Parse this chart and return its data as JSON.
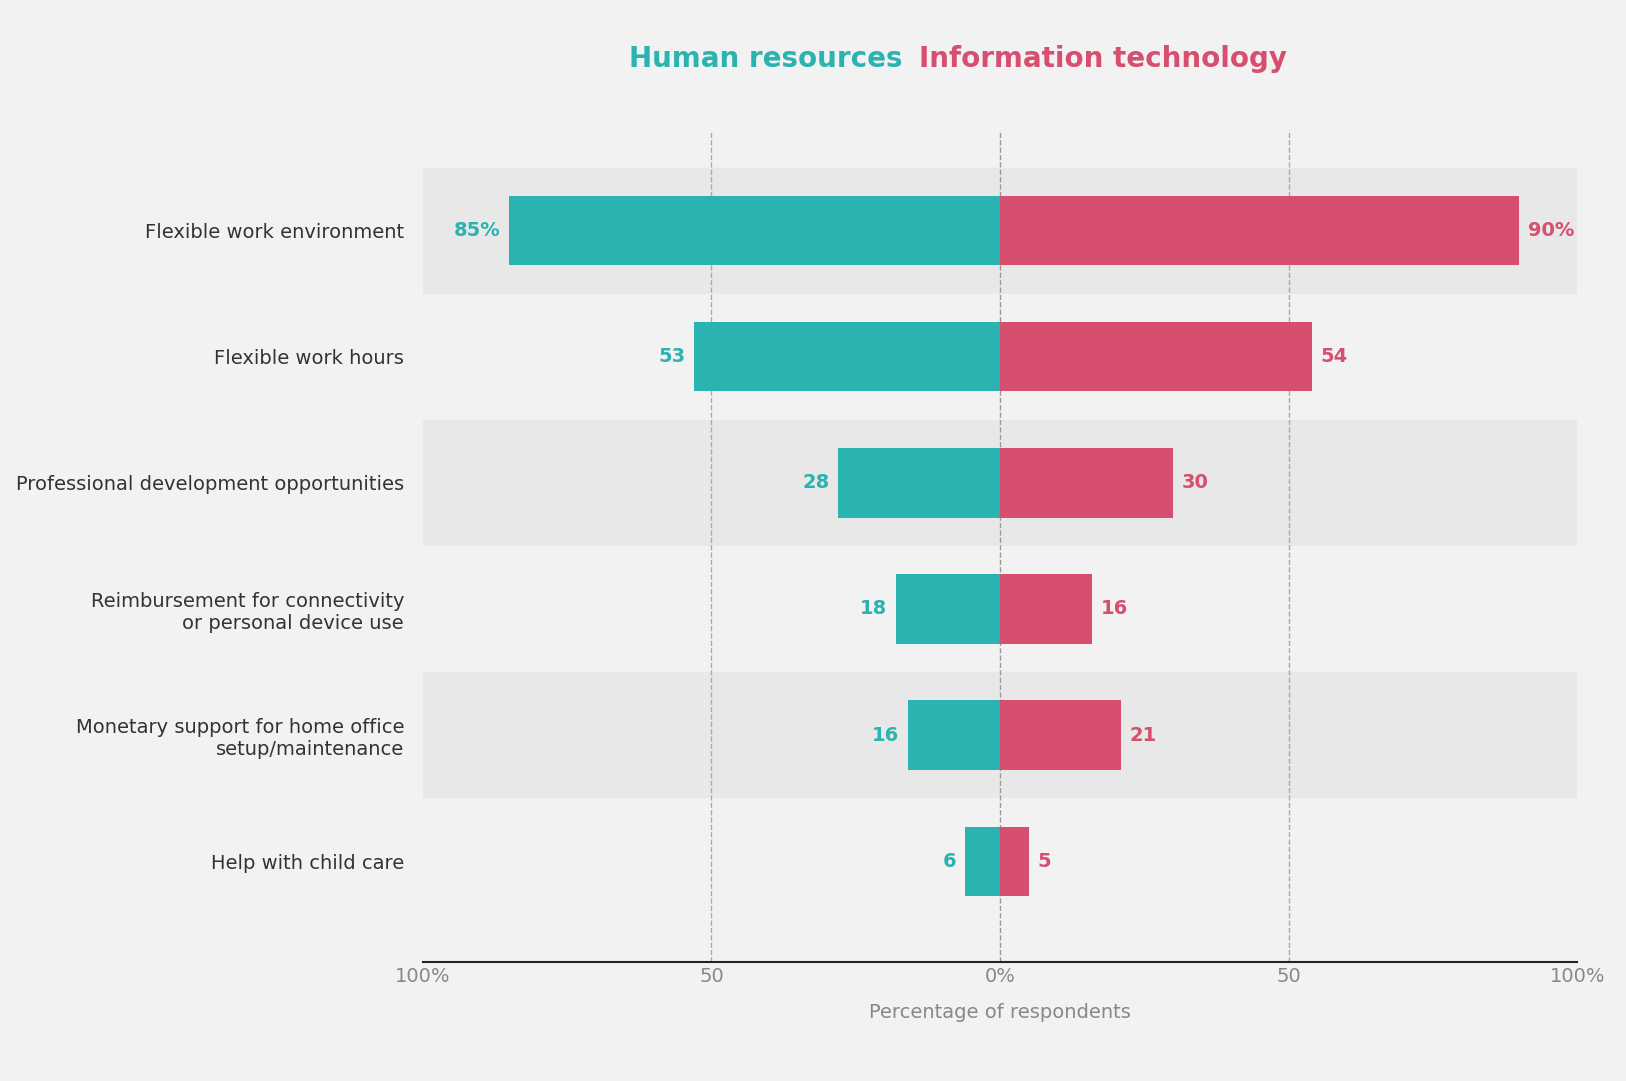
{
  "categories": [
    "Flexible work environment",
    "Flexible work hours",
    "Professional development opportunities",
    "Reimbursement for connectivity\nor personal device use",
    "Monetary support for home office\nsetup/maintenance",
    "Help with child care"
  ],
  "hr_values": [
    85,
    53,
    28,
    18,
    16,
    6
  ],
  "it_values": [
    90,
    54,
    30,
    16,
    21,
    5
  ],
  "hr_color": "#2ab3b0",
  "it_color": "#d64f6e",
  "hr_label": "Human resources",
  "it_label": "Information technology",
  "hr_label_color": "#2ab3b0",
  "it_label_color": "#d64f6e",
  "xlabel": "Percentage of respondents",
  "xlim": [
    -100,
    100
  ],
  "xticks": [
    -100,
    -50,
    0,
    50,
    100
  ],
  "xticklabels": [
    "100%",
    "50",
    "0%",
    "50",
    "100%"
  ],
  "background_color": "#f2f2f2",
  "bar_background_odd": "#e8e8e8",
  "bar_background_even": "#f2f2f2",
  "hr_color_label": "#2ab3b0",
  "it_color_label": "#d64f6e",
  "title_fontsize": 20,
  "label_fontsize": 14,
  "tick_fontsize": 14,
  "value_fontsize": 14,
  "dpi": 100,
  "figsize": [
    16.26,
    10.81
  ],
  "bar_height": 0.55,
  "value_label_suffix": [
    true,
    false,
    false,
    false,
    false,
    false
  ]
}
